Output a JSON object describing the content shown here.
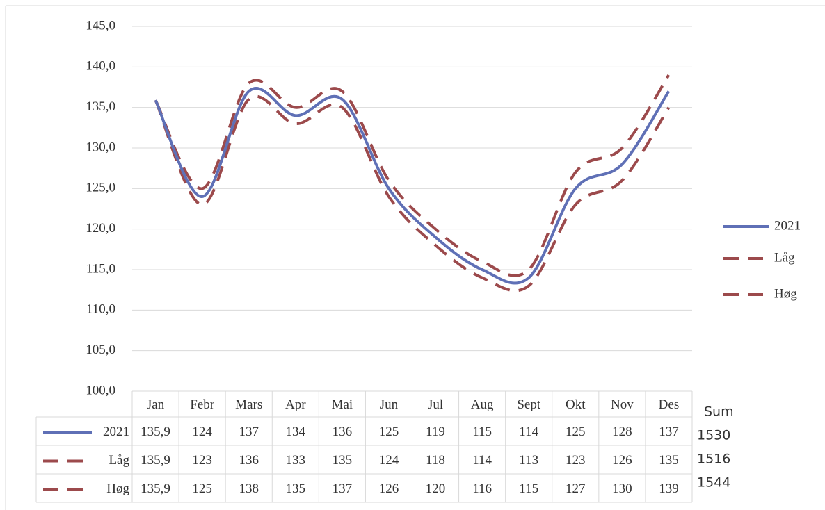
{
  "chart_data": {
    "type": "line",
    "categories": [
      "Jan",
      "Febr",
      "Mars",
      "Apr",
      "Mai",
      "Jun",
      "Jul",
      "Aug",
      "Sept",
      "Okt",
      "Nov",
      "Des"
    ],
    "series": [
      {
        "name": "2021",
        "color": "#5f70b6",
        "dashed": false,
        "values": [
          135.9,
          124,
          137,
          134,
          136,
          125,
          119,
          115,
          114,
          125,
          128,
          137
        ],
        "value_labels": [
          "135,9",
          "124",
          "137",
          "134",
          "136",
          "125",
          "119",
          "115",
          "114",
          "125",
          "128",
          "137"
        ],
        "sum": 1530
      },
      {
        "name": "Låg",
        "color": "#9c4a4c",
        "dashed": true,
        "values": [
          135.9,
          123,
          136,
          133,
          135,
          124,
          118,
          114,
          113,
          123,
          126,
          135
        ],
        "value_labels": [
          "135,9",
          "123",
          "136",
          "133",
          "135",
          "124",
          "118",
          "114",
          "113",
          "123",
          "126",
          "135"
        ],
        "sum": 1516
      },
      {
        "name": "Høg",
        "color": "#9c4a4c",
        "dashed": true,
        "values": [
          135.9,
          125,
          138,
          135,
          137,
          126,
          120,
          116,
          115,
          127,
          130,
          139
        ],
        "value_labels": [
          "135,9",
          "125",
          "138",
          "135",
          "137",
          "126",
          "120",
          "116",
          "115",
          "127",
          "130",
          "139"
        ],
        "sum": 1544
      }
    ],
    "sum_label": "Sum",
    "ylim": [
      100,
      145
    ],
    "yticks": [
      {
        "value": 100,
        "label": "100,0"
      },
      {
        "value": 105,
        "label": "105,0"
      },
      {
        "value": 110,
        "label": "110,0"
      },
      {
        "value": 115,
        "label": "115,0"
      },
      {
        "value": 120,
        "label": "120,0"
      },
      {
        "value": 125,
        "label": "125,0"
      },
      {
        "value": 130,
        "label": "130,0"
      },
      {
        "value": 135,
        "label": "135,0"
      },
      {
        "value": 140,
        "label": "140,0"
      },
      {
        "value": 145,
        "label": "145,0"
      }
    ],
    "grid": true,
    "legend": "right",
    "smooth": true
  }
}
